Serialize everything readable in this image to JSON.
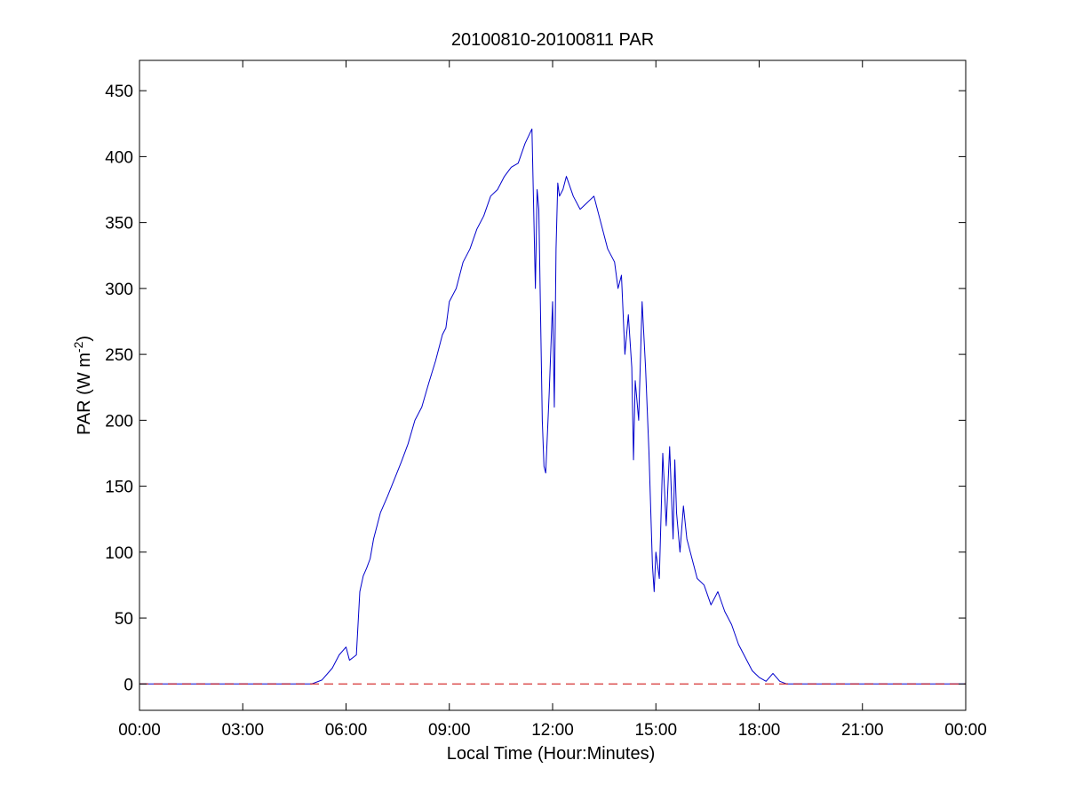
{
  "chart_data": {
    "type": "line",
    "title": "20100810-20100811 PAR",
    "xlabel": "Local Time (Hour:Minutes)",
    "ylabel": {
      "prefix": "PAR (W m",
      "superscript": "-2",
      "suffix": ")"
    },
    "xlim": [
      0,
      24
    ],
    "ylim": [
      -20,
      473
    ],
    "x_ticks": [
      {
        "value": 0,
        "label": "00:00"
      },
      {
        "value": 3,
        "label": "03:00"
      },
      {
        "value": 6,
        "label": "06:00"
      },
      {
        "value": 9,
        "label": "09:00"
      },
      {
        "value": 12,
        "label": "12:00"
      },
      {
        "value": 15,
        "label": "15:00"
      },
      {
        "value": 18,
        "label": "18:00"
      },
      {
        "value": 21,
        "label": "21:00"
      },
      {
        "value": 24,
        "label": "00:00"
      }
    ],
    "y_ticks": [
      {
        "value": 0,
        "label": "0"
      },
      {
        "value": 50,
        "label": "50"
      },
      {
        "value": 100,
        "label": "100"
      },
      {
        "value": 150,
        "label": "150"
      },
      {
        "value": 200,
        "label": "200"
      },
      {
        "value": 250,
        "label": "250"
      },
      {
        "value": 300,
        "label": "300"
      },
      {
        "value": 350,
        "label": "350"
      },
      {
        "value": 400,
        "label": "400"
      },
      {
        "value": 450,
        "label": "450"
      }
    ],
    "grid": false,
    "series": [
      {
        "color": "#0000cc",
        "style": "solid",
        "x": [
          0,
          5.0,
          5.3,
          5.6,
          5.8,
          6.0,
          6.1,
          6.2,
          6.3,
          6.4,
          6.5,
          6.6,
          6.7,
          6.8,
          6.9,
          7.0,
          7.2,
          7.4,
          7.6,
          7.8,
          8.0,
          8.2,
          8.4,
          8.6,
          8.8,
          8.9,
          9.0,
          9.2,
          9.4,
          9.6,
          9.8,
          10.0,
          10.2,
          10.4,
          10.6,
          10.8,
          11.0,
          11.2,
          11.4,
          11.5,
          11.55,
          11.6,
          11.7,
          11.75,
          11.8,
          11.9,
          12.0,
          12.05,
          12.1,
          12.15,
          12.2,
          12.3,
          12.4,
          12.6,
          12.8,
          13.0,
          13.2,
          13.4,
          13.6,
          13.8,
          13.9,
          14.0,
          14.1,
          14.2,
          14.3,
          14.35,
          14.4,
          14.5,
          14.6,
          14.7,
          14.8,
          14.9,
          14.95,
          15.0,
          15.1,
          15.2,
          15.3,
          15.4,
          15.5,
          15.55,
          15.6,
          15.7,
          15.8,
          15.9,
          16.0,
          16.1,
          16.2,
          16.4,
          16.6,
          16.8,
          17.0,
          17.2,
          17.4,
          17.6,
          17.8,
          18.0,
          18.2,
          18.4,
          18.6,
          18.8,
          19.0,
          24
        ],
        "y": [
          0,
          0,
          3,
          12,
          22,
          28,
          18,
          20,
          22,
          70,
          82,
          88,
          95,
          110,
          120,
          130,
          142,
          155,
          168,
          182,
          200,
          210,
          228,
          245,
          265,
          270,
          290,
          300,
          320,
          330,
          345,
          355,
          370,
          375,
          385,
          392,
          395,
          410,
          421,
          300,
          375,
          360,
          200,
          165,
          160,
          220,
          290,
          210,
          330,
          380,
          370,
          375,
          385,
          370,
          360,
          365,
          370,
          350,
          330,
          320,
          300,
          310,
          250,
          280,
          240,
          170,
          230,
          200,
          290,
          240,
          175,
          90,
          70,
          100,
          80,
          175,
          120,
          180,
          110,
          170,
          130,
          100,
          135,
          110,
          100,
          90,
          80,
          75,
          60,
          70,
          55,
          45,
          30,
          20,
          10,
          5,
          2,
          8,
          2,
          0,
          0,
          0
        ]
      },
      {
        "color": "#cc0000",
        "style": "dashed",
        "x": [
          0,
          24
        ],
        "y": [
          0,
          0
        ]
      }
    ]
  }
}
